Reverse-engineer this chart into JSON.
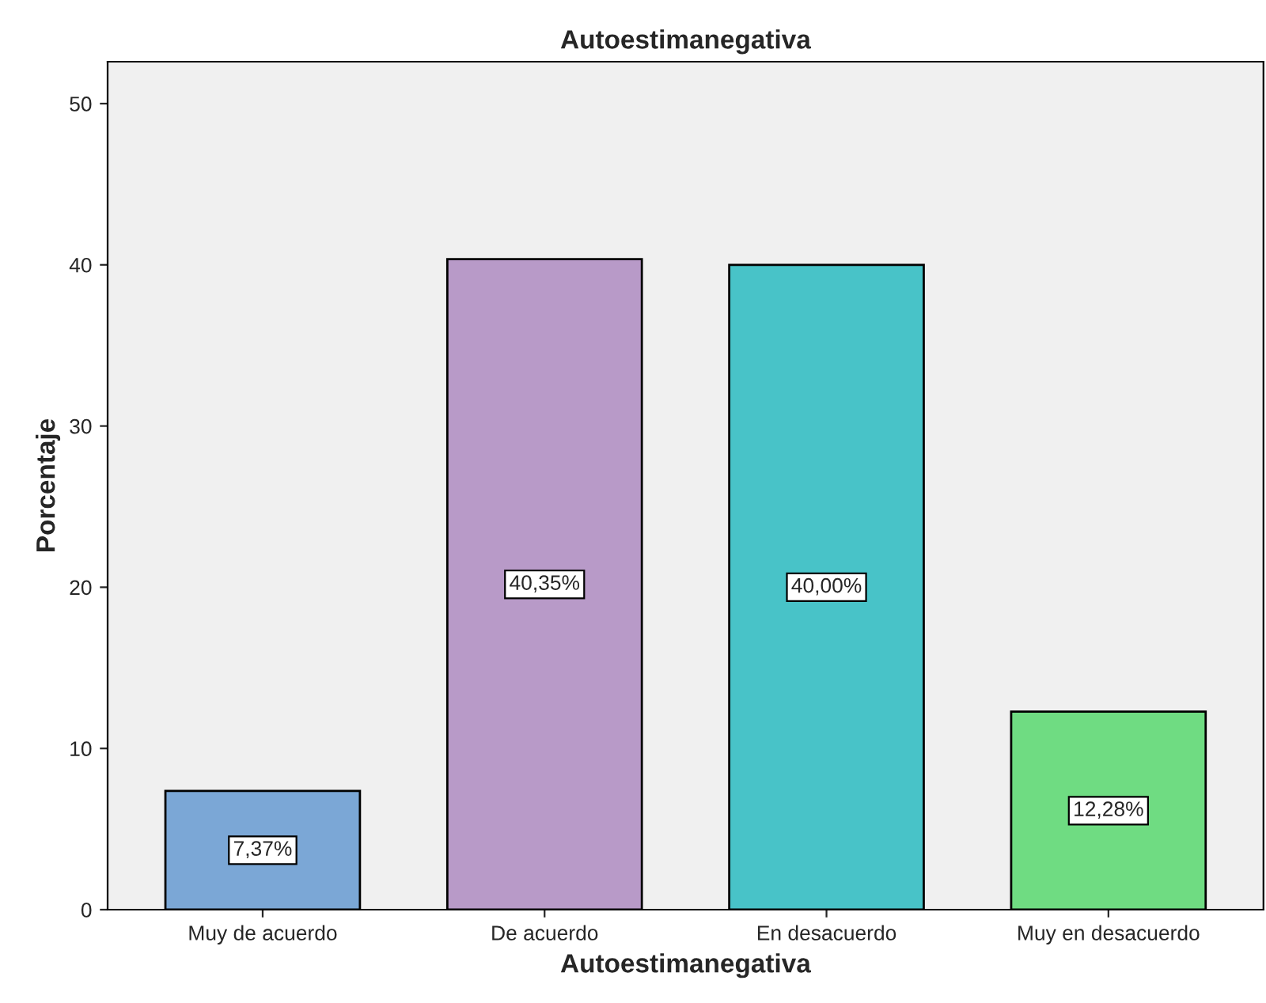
{
  "chart_data": {
    "type": "bar",
    "title": "Autoestimanegativa",
    "xlabel": "Autoestimanegativa",
    "ylabel": "Porcentaje",
    "categories": [
      "Muy de acuerdo",
      "De acuerdo",
      "En desacuerdo",
      "Muy en desacuerdo"
    ],
    "values": [
      7.37,
      40.35,
      40.0,
      12.28
    ],
    "colors": [
      "#7ba7d6",
      "#b89ac8",
      "#48c3c8",
      "#6fdc82"
    ],
    "value_labels": [
      "7,37%",
      "40,35%",
      "40,00%",
      "12,28%"
    ],
    "ylim": [
      0,
      52.6
    ],
    "yticks": [
      0,
      10,
      20,
      30,
      40,
      50
    ],
    "grid": false
  }
}
